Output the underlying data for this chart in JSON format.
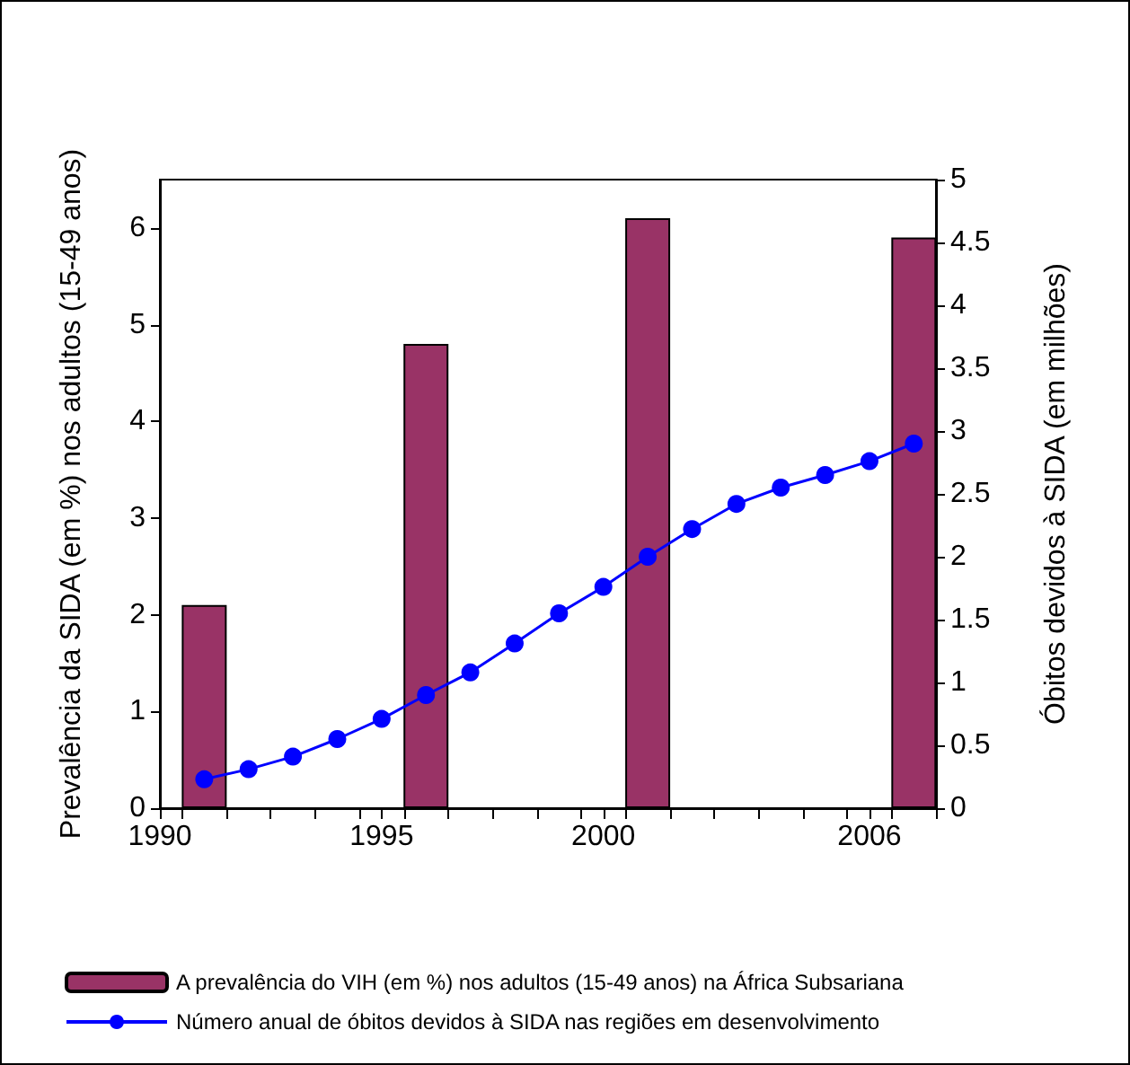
{
  "chart_data": {
    "type": "bar",
    "ylabel": "Prevalência da SIDA (em %) nos adultos (15-49 anos)",
    "y2label": "Óbitos devidos à SIDA (em milhões)",
    "xlim": [
      1990,
      2007.5
    ],
    "xticks": [
      1990,
      1995,
      2000,
      2006,
      {
        "value": 1990.5,
        "label": null
      },
      {
        "value": 1991.5,
        "label": null
      },
      {
        "value": 1992.5,
        "label": null
      },
      {
        "value": 1993.5,
        "label": null
      },
      {
        "value": 1994.5,
        "label": null
      },
      {
        "value": 1995.5,
        "label": null
      },
      {
        "value": 1996.5,
        "label": null
      },
      {
        "value": 1997.5,
        "label": null
      },
      {
        "value": 1998.5,
        "label": null
      },
      {
        "value": 1999.5,
        "label": null
      },
      {
        "value": 2000.5,
        "label": null
      },
      {
        "value": 2001.5,
        "label": null
      },
      {
        "value": 2002.5,
        "label": null
      },
      {
        "value": 2003.5,
        "label": null
      },
      {
        "value": 2004.5,
        "label": null
      },
      {
        "value": 2005.5,
        "label": null
      },
      {
        "value": 2006.5,
        "label": null
      },
      {
        "value": 2007.5,
        "label": null
      }
    ],
    "ylim": [
      0,
      6.5
    ],
    "yticks": [
      0,
      1,
      2,
      3,
      4,
      5,
      6
    ],
    "y2lim": [
      0,
      5
    ],
    "y2ticks": [
      0,
      0.5,
      1,
      1.5,
      2,
      2.5,
      3,
      3.5,
      4,
      4.5,
      5
    ],
    "grid": false,
    "legend": "bottom",
    "series": [
      {
        "name": "A prevalência do VIH (em %) nos adultos (15-49 anos) na África Subsariana",
        "color": "#993366",
        "x": [
          1991,
          1996,
          2001,
          2007
        ],
        "values": [
          2.1,
          4.8,
          6.1,
          5.9
        ]
      },
      {
        "type": "line",
        "axis": "y2",
        "marker": "circle",
        "line_style": "solid",
        "name": "Número anual de óbitos devidos à SIDA nas regiões em desenvolvimento",
        "color": "#0000ff",
        "x": [
          1991,
          1992,
          1993,
          1994,
          1995,
          1996,
          1997,
          1998,
          1999,
          2000,
          2001,
          2002,
          2003,
          2004,
          2005,
          2006,
          2007
        ],
        "values": [
          0.23,
          0.31,
          0.41,
          0.55,
          0.71,
          0.9,
          1.08,
          1.31,
          1.55,
          1.76,
          2.0,
          2.22,
          2.42,
          2.55,
          2.65,
          2.76,
          2.9
        ]
      }
    ]
  }
}
